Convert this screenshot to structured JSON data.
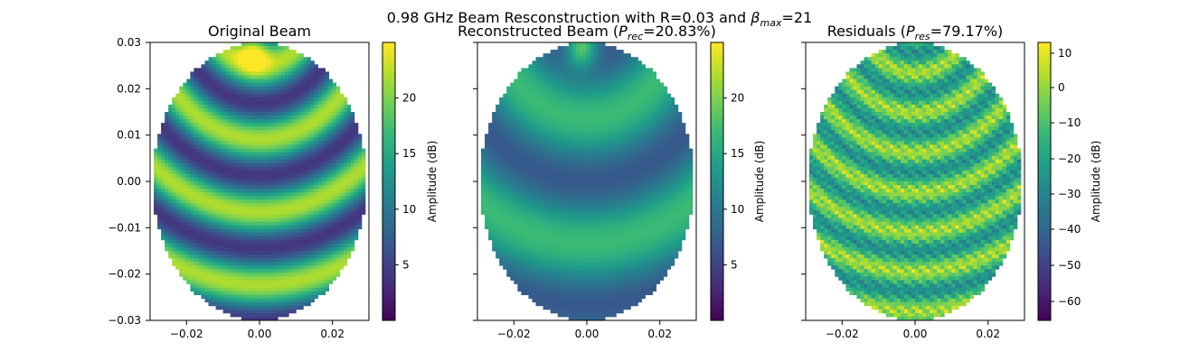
{
  "figure": {
    "suptitle_prefix": "0.98 GHz Beam Resconstruction with R=0.03 and  ",
    "suptitle_beta": "β",
    "suptitle_beta_sub": "max",
    "suptitle_suffix": "=21"
  },
  "colors": {
    "colormap": "viridis",
    "viridis_stops": [
      "#440154",
      "#482878",
      "#3e4989",
      "#31688e",
      "#26828e",
      "#1f9e89",
      "#35b779",
      "#6ece58",
      "#b5de2b",
      "#fde725"
    ]
  },
  "chart_data": [
    {
      "type": "heatmap",
      "title": "Original Beam",
      "xlim": [
        -0.03,
        0.03
      ],
      "ylim": [
        -0.03,
        0.03
      ],
      "x_ticks": [
        "−0.02",
        "0.00",
        "0.02"
      ],
      "y_ticks": [
        "0.03",
        "0.02",
        "0.01",
        "0.00",
        "−0.01",
        "−0.02",
        "−0.03"
      ],
      "colorbar": {
        "label": "Amplitude (dB)",
        "range": [
          0,
          25
        ],
        "ticks": [
          "20",
          "15",
          "10",
          "5"
        ]
      },
      "pattern": {
        "mean": 13,
        "amp": 9,
        "freq": 12,
        "hot_spot": 11
      }
    },
    {
      "type": "heatmap",
      "title_prefix": "Reconstructed Beam (",
      "title_var": "P",
      "title_sub": "rec",
      "title_suffix": "=20.83%)",
      "xlim": [
        -0.03,
        0.03
      ],
      "ylim": [
        -0.03,
        0.03
      ],
      "x_ticks": [
        "−0.02",
        "0.00",
        "0.02"
      ],
      "colorbar": {
        "label": "Amplitude (dB)",
        "range": [
          0,
          25
        ],
        "ticks": [
          "20",
          "15",
          "10",
          "5"
        ]
      },
      "pattern": {
        "mean": 12,
        "amp": 5,
        "freq": 7,
        "hot_spot": 11
      }
    },
    {
      "type": "heatmap",
      "title_prefix": "Residuals (",
      "title_var": "P",
      "title_sub": "res",
      "title_suffix": "=79.17%)",
      "xlim": [
        -0.03,
        0.03
      ],
      "ylim": [
        -0.03,
        0.03
      ],
      "x_ticks": [
        "−0.02",
        "0.00",
        "0.02"
      ],
      "colorbar": {
        "label": "Amplitude (dB)",
        "range": [
          -65,
          13
        ],
        "ticks": [
          "10",
          "0",
          "−10",
          "−20",
          "−30",
          "−40",
          "−50",
          "−60"
        ]
      },
      "pattern": {
        "mean": -12,
        "amp": 14,
        "freq": 22,
        "hot_spot": 0
      }
    }
  ]
}
